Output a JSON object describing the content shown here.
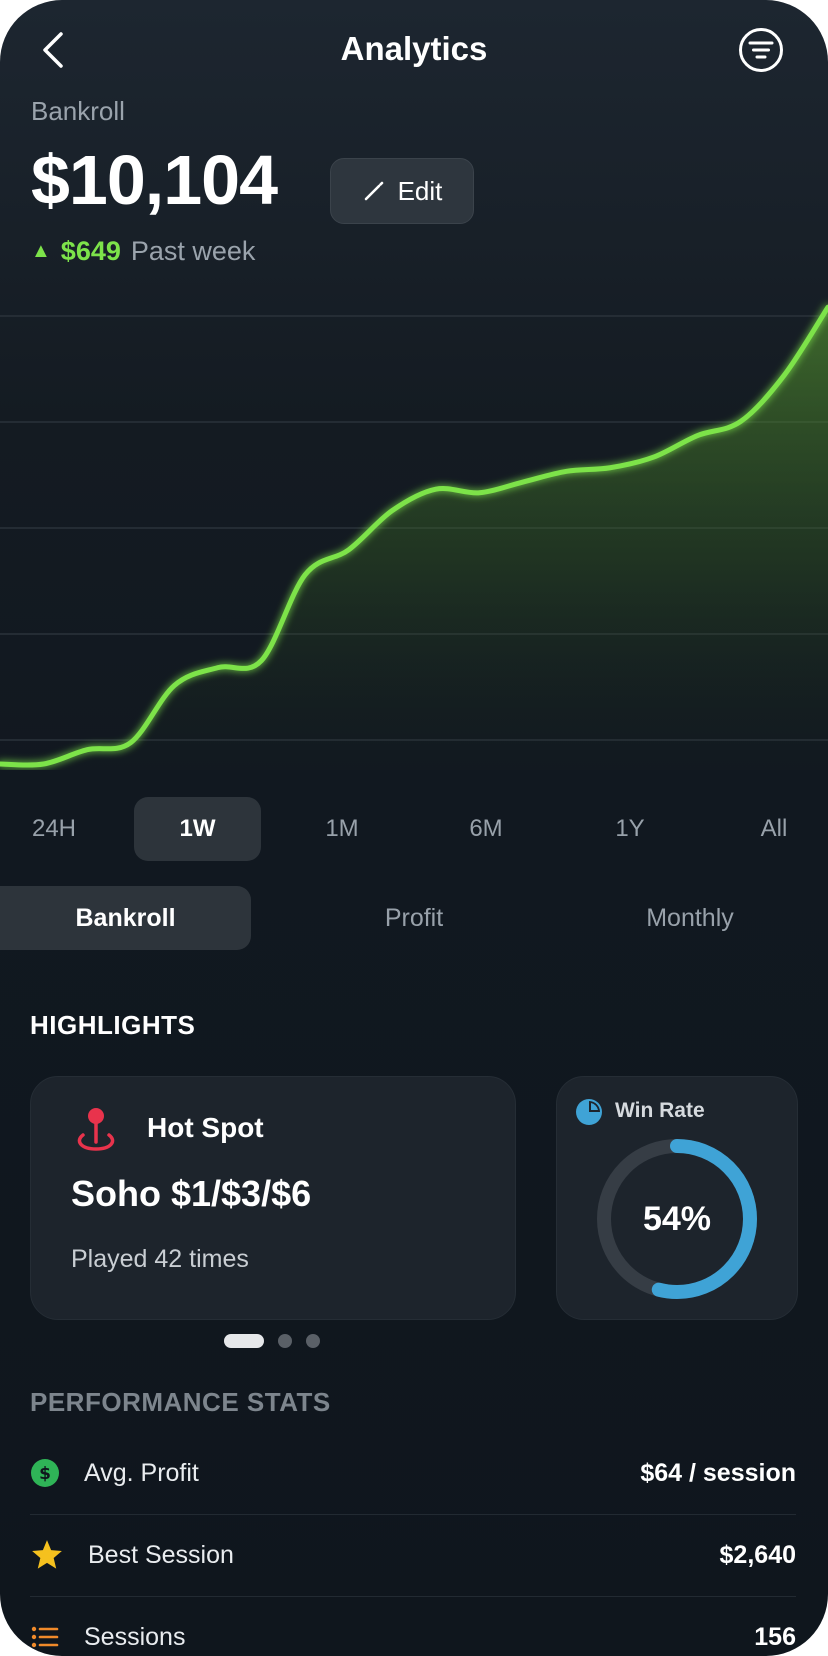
{
  "header": {
    "title": "Analytics",
    "back_icon": "chevron-left-icon",
    "menu_icon": "filter-menu-icon"
  },
  "bankroll": {
    "label": "Bankroll",
    "amount": "$10,104",
    "edit_label": "Edit",
    "change": "$649",
    "change_period": "Past week",
    "accent": "#7de34a"
  },
  "chart_data": {
    "type": "area",
    "title": "",
    "xlabel": "",
    "ylabel": "",
    "grid": true,
    "color": "#7de34a",
    "x": [
      0,
      1,
      2,
      3,
      4,
      5,
      6,
      7,
      8,
      9,
      10,
      11,
      12,
      13,
      14,
      15,
      16,
      17,
      18,
      19
    ],
    "values": [
      0,
      0,
      0.04,
      0.06,
      0.22,
      0.27,
      0.29,
      0.53,
      0.6,
      0.71,
      0.77,
      0.76,
      0.79,
      0.82,
      0.83,
      0.86,
      0.92,
      0.96,
      1.09,
      1.28
    ],
    "ylim": [
      0,
      1.3
    ]
  },
  "time_ranges": [
    {
      "label": "24H",
      "active": false
    },
    {
      "label": "1W",
      "active": true
    },
    {
      "label": "1M",
      "active": false
    },
    {
      "label": "6M",
      "active": false
    },
    {
      "label": "1Y",
      "active": false
    },
    {
      "label": "All",
      "active": false
    }
  ],
  "segments": [
    {
      "label": "Bankroll",
      "active": true
    },
    {
      "label": "Profit",
      "active": false
    },
    {
      "label": "Monthly",
      "active": false
    }
  ],
  "highlights": {
    "title": "HIGHLIGHTS",
    "hot_spot": {
      "icon": "location-pin-icon",
      "title": "Hot Spot",
      "name": "Soho $1/$3/$6",
      "detail": "Played 42 times",
      "color": "#e8334c"
    },
    "win_rate": {
      "icon": "pie-chart-icon",
      "title": "Win Rate",
      "value": "54%",
      "percent": 54,
      "color": "#3fa3d6"
    },
    "pager": {
      "count": 3,
      "active": 0
    }
  },
  "performance": {
    "title": "PERFORMANCE STATS",
    "rows": [
      {
        "icon": "dollar-coin-icon",
        "label": "Avg. Profit",
        "value": "$64 / session"
      },
      {
        "icon": "star-icon",
        "label": "Best Session",
        "value": "$2,640"
      },
      {
        "icon": "list-icon",
        "label": "Sessions",
        "value": "156"
      }
    ]
  }
}
